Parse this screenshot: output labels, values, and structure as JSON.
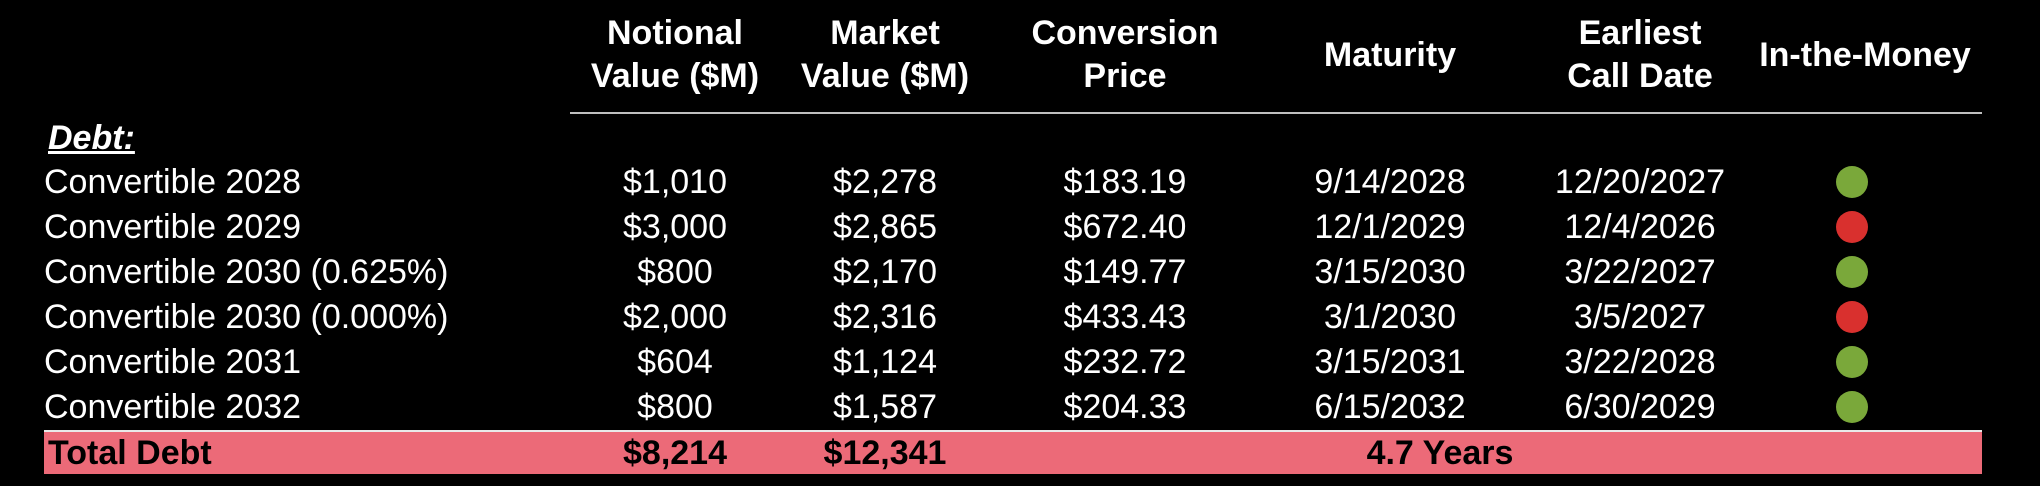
{
  "headers": [
    "Notional\nValue ($M)",
    "Market\nValue ($M)",
    "Conversion\nPrice",
    "Maturity",
    "Earliest\nCall Date",
    "In-the-Money"
  ],
  "section_label": "Debt:",
  "rows": [
    {
      "name": "Convertible 2028",
      "notional": "$1,010",
      "market": "$2,278",
      "price": "$183.19",
      "maturity": "9/14/2028",
      "call": "12/20/2027",
      "itm": "yes"
    },
    {
      "name": "Convertible 2029",
      "notional": "$3,000",
      "market": "$2,865",
      "price": "$672.40",
      "maturity": "12/1/2029",
      "call": "12/4/2026",
      "itm": "no"
    },
    {
      "name": "Convertible 2030 (0.625%)",
      "notional": "$800",
      "market": "$2,170",
      "price": "$149.77",
      "maturity": "3/15/2030",
      "call": "3/22/2027",
      "itm": "yes"
    },
    {
      "name": "Convertible 2030 (0.000%)",
      "notional": "$2,000",
      "market": "$2,316",
      "price": "$433.43",
      "maturity": "3/1/2030",
      "call": "3/5/2027",
      "itm": "no"
    },
    {
      "name": "Convertible 2031",
      "notional": "$604",
      "market": "$1,124",
      "price": "$232.72",
      "maturity": "3/15/2031",
      "call": "3/22/2028",
      "itm": "yes"
    },
    {
      "name": "Convertible 2032",
      "notional": "$800",
      "market": "$1,587",
      "price": "$204.33",
      "maturity": "6/15/2032",
      "call": "6/30/2029",
      "itm": "yes"
    }
  ],
  "total": {
    "name": "Total Debt",
    "notional": "$8,214",
    "market": "$12,341",
    "maturity": "4.7 Years"
  },
  "colors": {
    "background": "#000000",
    "text": "#ffffff",
    "total_bar": "#ec6a78",
    "in_the_money_yes": "#7aa83a",
    "in_the_money_no": "#d9302e"
  }
}
